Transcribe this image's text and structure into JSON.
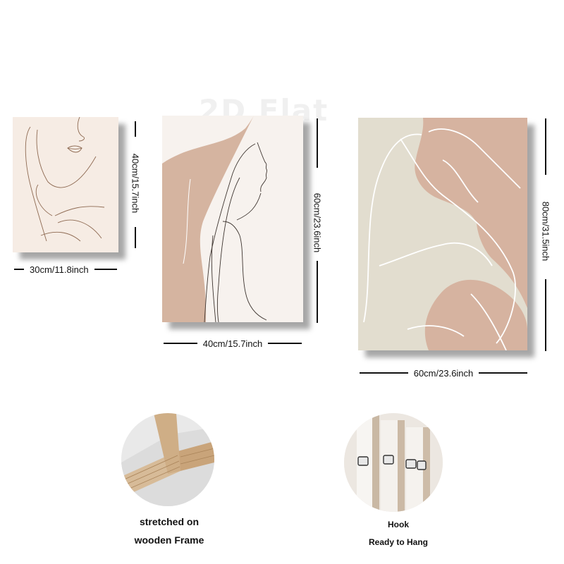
{
  "watermark": "2D Flat",
  "colors": {
    "beige_light": "#f6ece4",
    "blush": "#d2b09a",
    "sage": "#e2ddcf",
    "line_brown": "#9b7a62"
  },
  "panels": [
    {
      "name": "face-line-art-panel",
      "subject": "face-line-art",
      "width_label": "30cm/11.8inch",
      "height_label": "40cm/15.7inch"
    },
    {
      "name": "profile-line-art-panel",
      "subject": "woman-profile-line-art",
      "width_label": "40cm/15.7inch",
      "height_label": "60cm/23.6inch"
    },
    {
      "name": "abstract-figure-panel",
      "subject": "abstract-body-line-art",
      "width_label": "60cm/23.6inch",
      "height_label": "80cm/31.5inch"
    }
  ],
  "features": [
    {
      "icon": "wooden-frame-icon",
      "line1": "stretched on",
      "line2": "wooden Frame"
    },
    {
      "icon": "hook-icon",
      "line1": "Hook",
      "line2": "Ready to Hang"
    }
  ]
}
